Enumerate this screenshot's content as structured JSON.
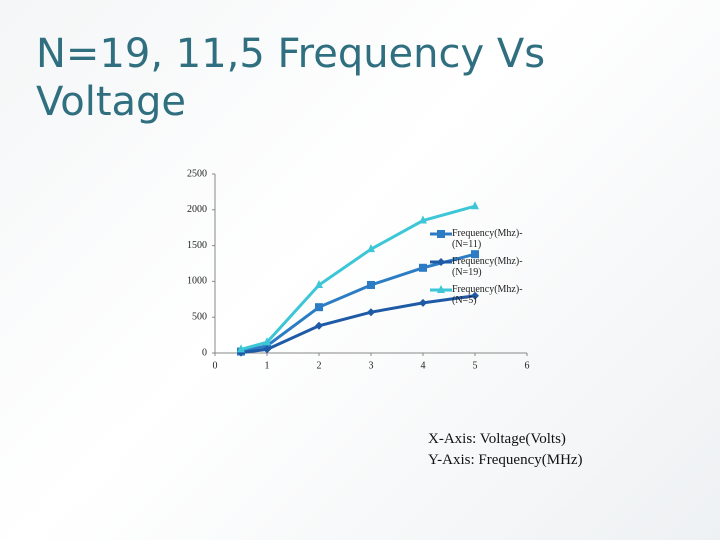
{
  "chart_data": {
    "type": "line",
    "title": "N=19, 11,5 Frequency Vs Voltage",
    "x": [
      0.5,
      1,
      2,
      3,
      4,
      5
    ],
    "series": [
      {
        "name": "Frequency(Mhz)-(N=11)",
        "color": "#2b7cc4",
        "marker": "square",
        "values": [
          20,
          100,
          640,
          950,
          1190,
          1380
        ]
      },
      {
        "name": "Frequency(Mhz)-(N=19)",
        "color": "#1f5aa6",
        "marker": "diamond",
        "values": [
          5,
          50,
          380,
          570,
          700,
          800
        ]
      },
      {
        "name": "Frequency(Mhz)-(N=5)",
        "color": "#3cc6d6",
        "marker": "triangle",
        "values": [
          50,
          150,
          950,
          1450,
          1850,
          2050
        ]
      }
    ],
    "xlim": [
      0,
      6
    ],
    "xticks": [
      0,
      1,
      2,
      3,
      4,
      5,
      6
    ],
    "ylim": [
      0,
      2500
    ],
    "yticks": [
      0,
      500,
      1000,
      1500,
      2000,
      2500
    ],
    "grid": false,
    "legend": "right",
    "annotations": [
      "X-Axis: Voltage(Volts)",
      "Y-Axis: Frequency(MHz)"
    ]
  }
}
